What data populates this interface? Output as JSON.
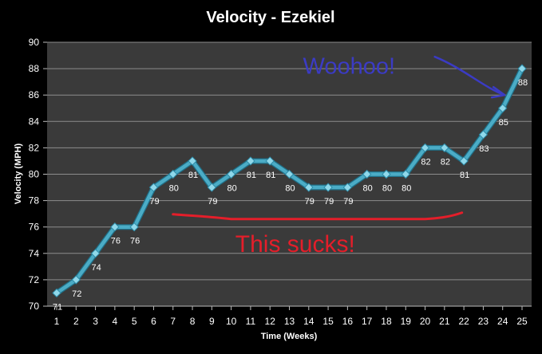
{
  "chart_data": {
    "type": "line",
    "title": "Velocity - Ezekiel",
    "xlabel": "Time (Weeks)",
    "ylabel": "Velocity (MPH)",
    "x": [
      1,
      2,
      3,
      4,
      5,
      6,
      7,
      8,
      9,
      10,
      11,
      12,
      13,
      14,
      15,
      16,
      17,
      18,
      19,
      20,
      21,
      22,
      23,
      24,
      25
    ],
    "series": [
      {
        "values": [
          71,
          72,
          74,
          76,
          76,
          79,
          80,
          81,
          79,
          80,
          81,
          81,
          80,
          79,
          79,
          79,
          80,
          80,
          80,
          82,
          82,
          81,
          83,
          85,
          88
        ],
        "color": "#4bacc6"
      }
    ],
    "data_labels": [
      "71",
      "72",
      "74",
      "76",
      "76",
      "79",
      "80",
      "81",
      "79",
      "80",
      "81",
      "81",
      "80",
      "79",
      "79",
      "79",
      "80",
      "80",
      "80",
      "82",
      "82",
      "81",
      "83",
      "85",
      "88"
    ],
    "ylim": [
      70,
      90
    ],
    "y_ticks": [
      "70",
      "72",
      "74",
      "76",
      "78",
      "80",
      "82",
      "84",
      "86",
      "88",
      "90"
    ],
    "x_ticks": [
      "1",
      "2",
      "3",
      "4",
      "5",
      "6",
      "7",
      "8",
      "9",
      "10",
      "11",
      "12",
      "13",
      "14",
      "15",
      "16",
      "17",
      "18",
      "19",
      "20",
      "21",
      "22",
      "23",
      "24",
      "25"
    ],
    "grid": "horizontal",
    "legend": "none",
    "colors": {
      "background": "#000000",
      "plot_background": "#3a3a3a",
      "gridline": "#8c8c8c",
      "line": "#4bacc6"
    },
    "annotations": [
      {
        "text": "Woohoo!",
        "color": "#3b3bc4",
        "arrow_to": {
          "x": 24.1,
          "y": 86
        }
      },
      {
        "text": "This sucks!",
        "color": "#e41e2a",
        "underline_y": 76.6
      }
    ]
  }
}
